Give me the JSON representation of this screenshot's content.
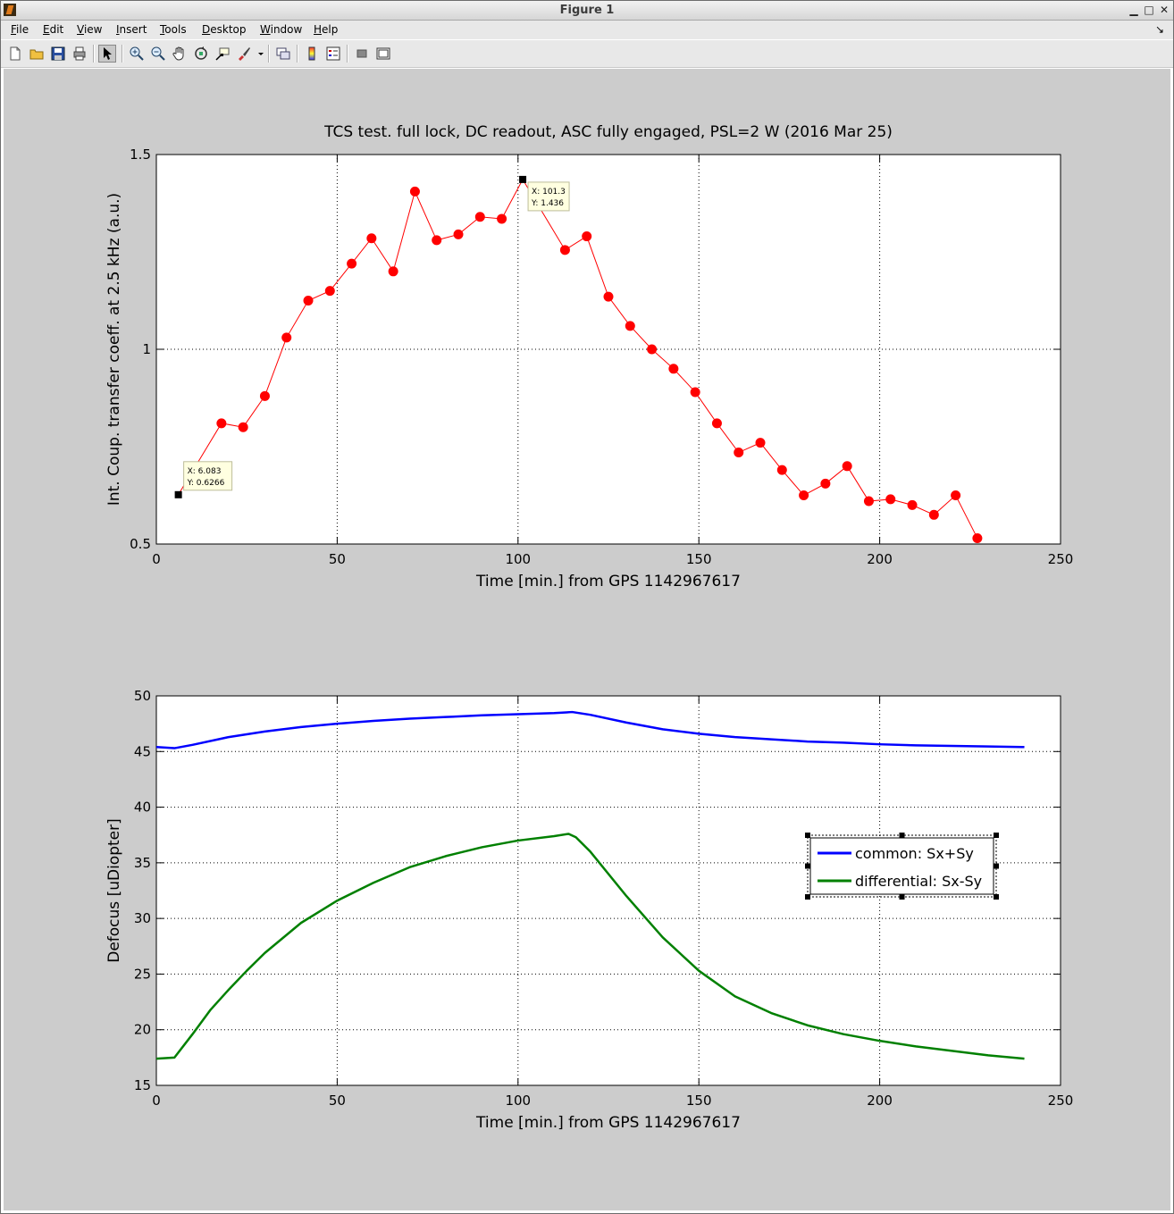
{
  "window": {
    "title": "Figure 1",
    "controls": [
      "minimize-icon",
      "maximize-icon",
      "close-icon"
    ]
  },
  "menubar": {
    "items": [
      {
        "label": "File",
        "mnemonic": "F"
      },
      {
        "label": "Edit",
        "mnemonic": "E"
      },
      {
        "label": "View",
        "mnemonic": "V"
      },
      {
        "label": "Insert",
        "mnemonic": "I"
      },
      {
        "label": "Tools",
        "mnemonic": "T"
      },
      {
        "label": "Desktop",
        "mnemonic": "D"
      },
      {
        "label": "Window",
        "mnemonic": "W"
      },
      {
        "label": "Help",
        "mnemonic": "H"
      }
    ]
  },
  "toolbar": {
    "buttons": [
      "new-figure-icon",
      "open-file-icon",
      "save-icon",
      "print-icon",
      "edit-plot-arrow-icon",
      "zoom-in-icon",
      "zoom-out-icon",
      "pan-hand-icon",
      "rotate-3d-icon",
      "data-cursor-icon",
      "brush-icon",
      "link-plot-icon",
      "colorbar-icon",
      "legend-icon",
      "hide-plot-tools-icon",
      "show-plot-tools-icon"
    ]
  },
  "chart_data": [
    {
      "type": "line",
      "title": "TCS test. full lock, DC readout, ASC fully engaged, PSL=2 W (2016 Mar 25)",
      "xlabel": "Time [min.] from GPS 1142967617",
      "ylabel": "Int. Coup. transfer coeff. at 2.5 kHz (a.u.)",
      "xlim": [
        0,
        250
      ],
      "ylim": [
        0.5,
        1.5
      ],
      "xticks": [
        "0",
        "50",
        "100",
        "150",
        "200",
        "250"
      ],
      "yticks": [
        "0.5",
        "1",
        "1.5"
      ],
      "grid": true,
      "marker": "circle",
      "color": "#ff0000",
      "series": [
        {
          "x": [
            6.083,
            18,
            24,
            30,
            36,
            42,
            48,
            54,
            59.5,
            65.5,
            71.5,
            77.5,
            83.5,
            89.5,
            95.5,
            101.3,
            113,
            119,
            125,
            131,
            137,
            143,
            149,
            155,
            161,
            167,
            173,
            179,
            185,
            191,
            197,
            203,
            209,
            215,
            221,
            227
          ],
          "values": [
            0.6266,
            0.81,
            0.8,
            0.88,
            1.03,
            1.125,
            1.15,
            1.22,
            1.285,
            1.2,
            1.405,
            1.28,
            1.295,
            1.34,
            1.335,
            1.436,
            1.255,
            1.29,
            1.135,
            1.06,
            1.0,
            0.95,
            0.89,
            0.81,
            0.735,
            0.76,
            0.69,
            0.625,
            0.655,
            0.7,
            0.61,
            0.615,
            0.6,
            0.575,
            0.625,
            0.515
          ]
        }
      ],
      "data_tips": [
        {
          "x_label": "X: 6.083",
          "y_label": "Y: 0.6266",
          "x": 6.083,
          "y": 0.6266
        },
        {
          "x_label": "X: 101.3",
          "y_label": "Y: 1.436",
          "x": 101.3,
          "y": 1.436
        }
      ]
    },
    {
      "type": "line",
      "title": "",
      "xlabel": "Time [min.] from GPS 1142967617",
      "ylabel": "Defocus [uDiopter]",
      "xlim": [
        0,
        250
      ],
      "ylim": [
        15,
        50
      ],
      "xticks": [
        "0",
        "50",
        "100",
        "150",
        "200",
        "250"
      ],
      "yticks": [
        "15",
        "20",
        "25",
        "30",
        "35",
        "40",
        "45",
        "50"
      ],
      "grid": true,
      "legend": "right",
      "series": [
        {
          "name": "common: Sx+Sy",
          "color": "#0000ff",
          "x": [
            0,
            5,
            10,
            20,
            30,
            40,
            50,
            60,
            70,
            80,
            90,
            100,
            110,
            115,
            120,
            130,
            140,
            150,
            160,
            170,
            180,
            190,
            200,
            210,
            220,
            230,
            240
          ],
          "values": [
            45.4,
            45.3,
            45.6,
            46.3,
            46.8,
            47.2,
            47.5,
            47.75,
            47.95,
            48.1,
            48.25,
            48.35,
            48.45,
            48.55,
            48.3,
            47.6,
            47.0,
            46.6,
            46.3,
            46.1,
            45.9,
            45.8,
            45.65,
            45.55,
            45.5,
            45.45,
            45.4
          ]
        },
        {
          "name": "differential: Sx-Sy",
          "color": "#008000",
          "x": [
            0,
            5,
            10,
            15,
            20,
            25,
            30,
            40,
            50,
            60,
            70,
            80,
            90,
            100,
            110,
            114,
            116,
            120,
            130,
            140,
            150,
            160,
            170,
            180,
            190,
            200,
            210,
            220,
            230,
            240
          ],
          "values": [
            17.4,
            17.5,
            19.6,
            21.8,
            23.6,
            25.3,
            26.9,
            29.6,
            31.6,
            33.2,
            34.6,
            35.6,
            36.4,
            37.0,
            37.4,
            37.6,
            37.3,
            36.0,
            32.0,
            28.3,
            25.3,
            23.0,
            21.5,
            20.4,
            19.6,
            19.0,
            18.5,
            18.1,
            17.7,
            17.4
          ]
        }
      ]
    }
  ]
}
